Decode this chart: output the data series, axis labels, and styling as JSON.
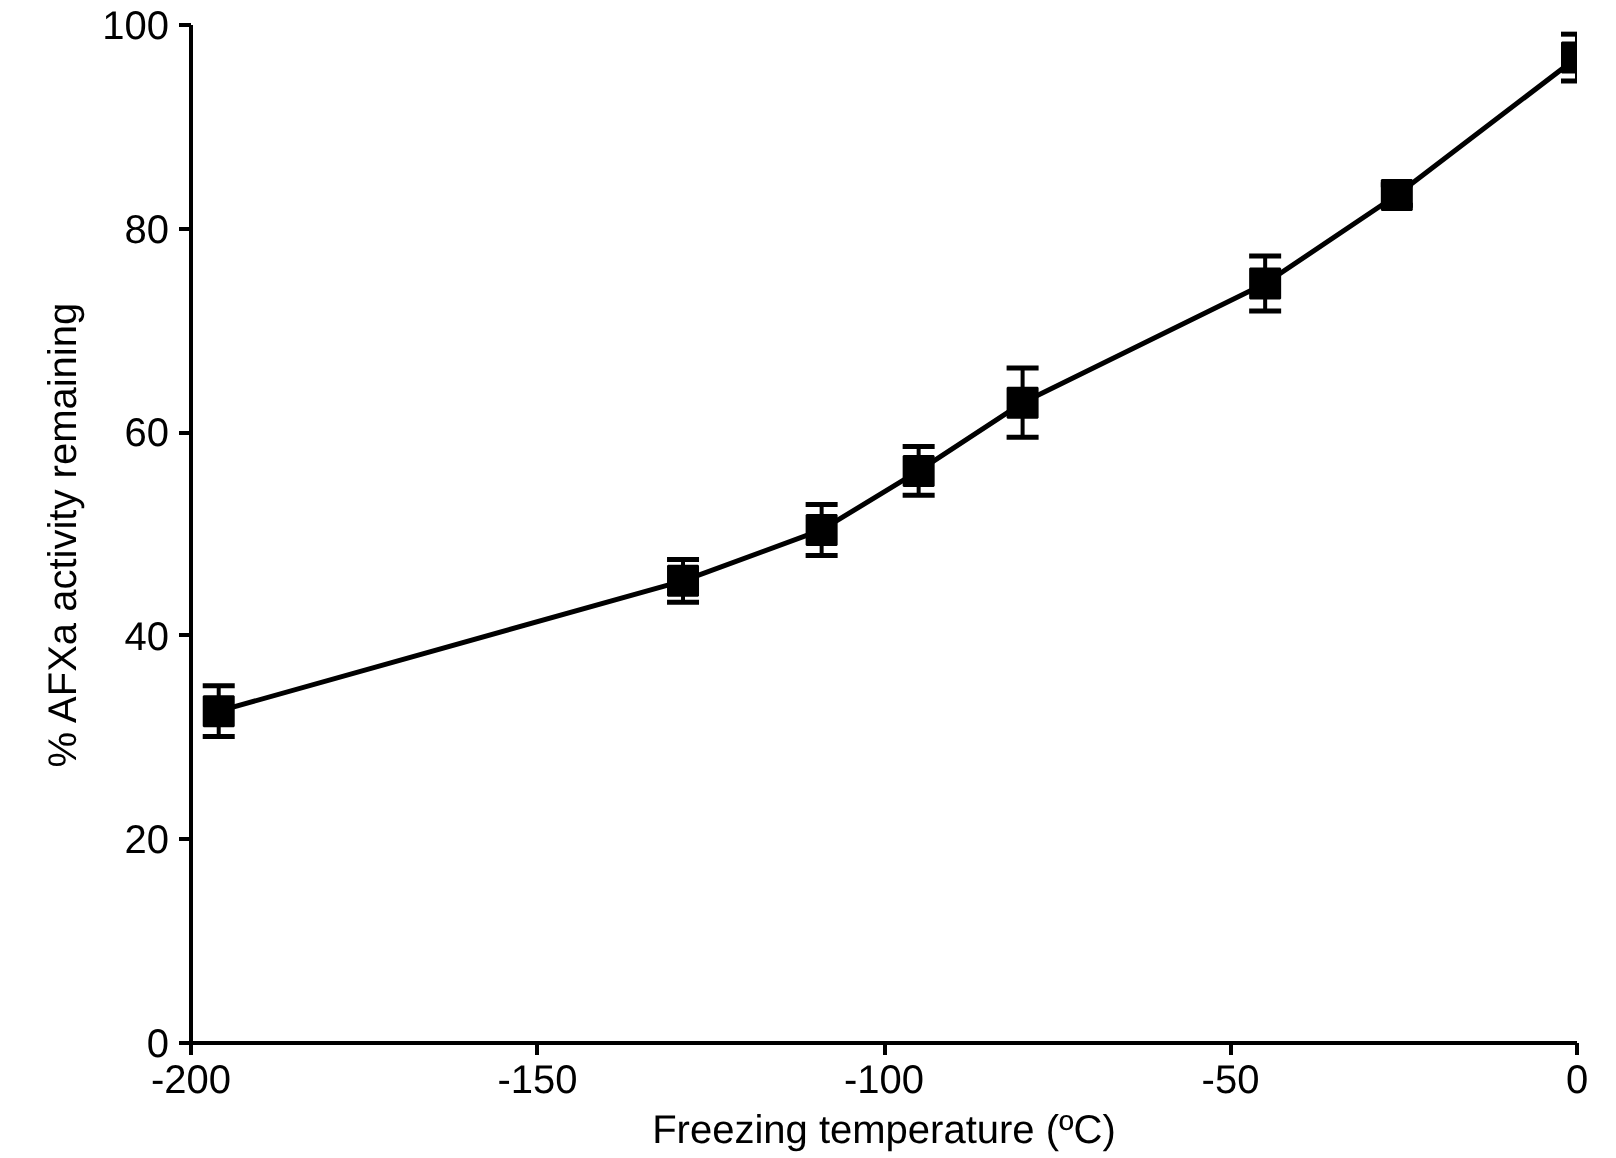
{
  "chart_data": {
    "type": "line",
    "xlabel": "Freezing temperature (ºC)",
    "ylabel": "% AFXa activity remaining",
    "x": [
      -196,
      -129,
      -109,
      -95,
      -80,
      -45,
      -26,
      0
    ],
    "series": [
      {
        "color": "#000000",
        "values": [
          32.6,
          45.4,
          50.4,
          56.2,
          62.9,
          74.6,
          83.3,
          96.8
        ],
        "errors": [
          2.5,
          2.1,
          2.5,
          2.4,
          3.4,
          2.7,
          1,
          2.3
        ]
      }
    ],
    "xlim": [
      -200,
      0
    ],
    "xticks": [
      -200,
      -150,
      -100,
      -50,
      0
    ],
    "ylim": [
      0,
      100
    ],
    "yticks": [
      0,
      20,
      40,
      60,
      80,
      100
    ],
    "grid": false,
    "marker": "square",
    "line_style": "solid"
  }
}
